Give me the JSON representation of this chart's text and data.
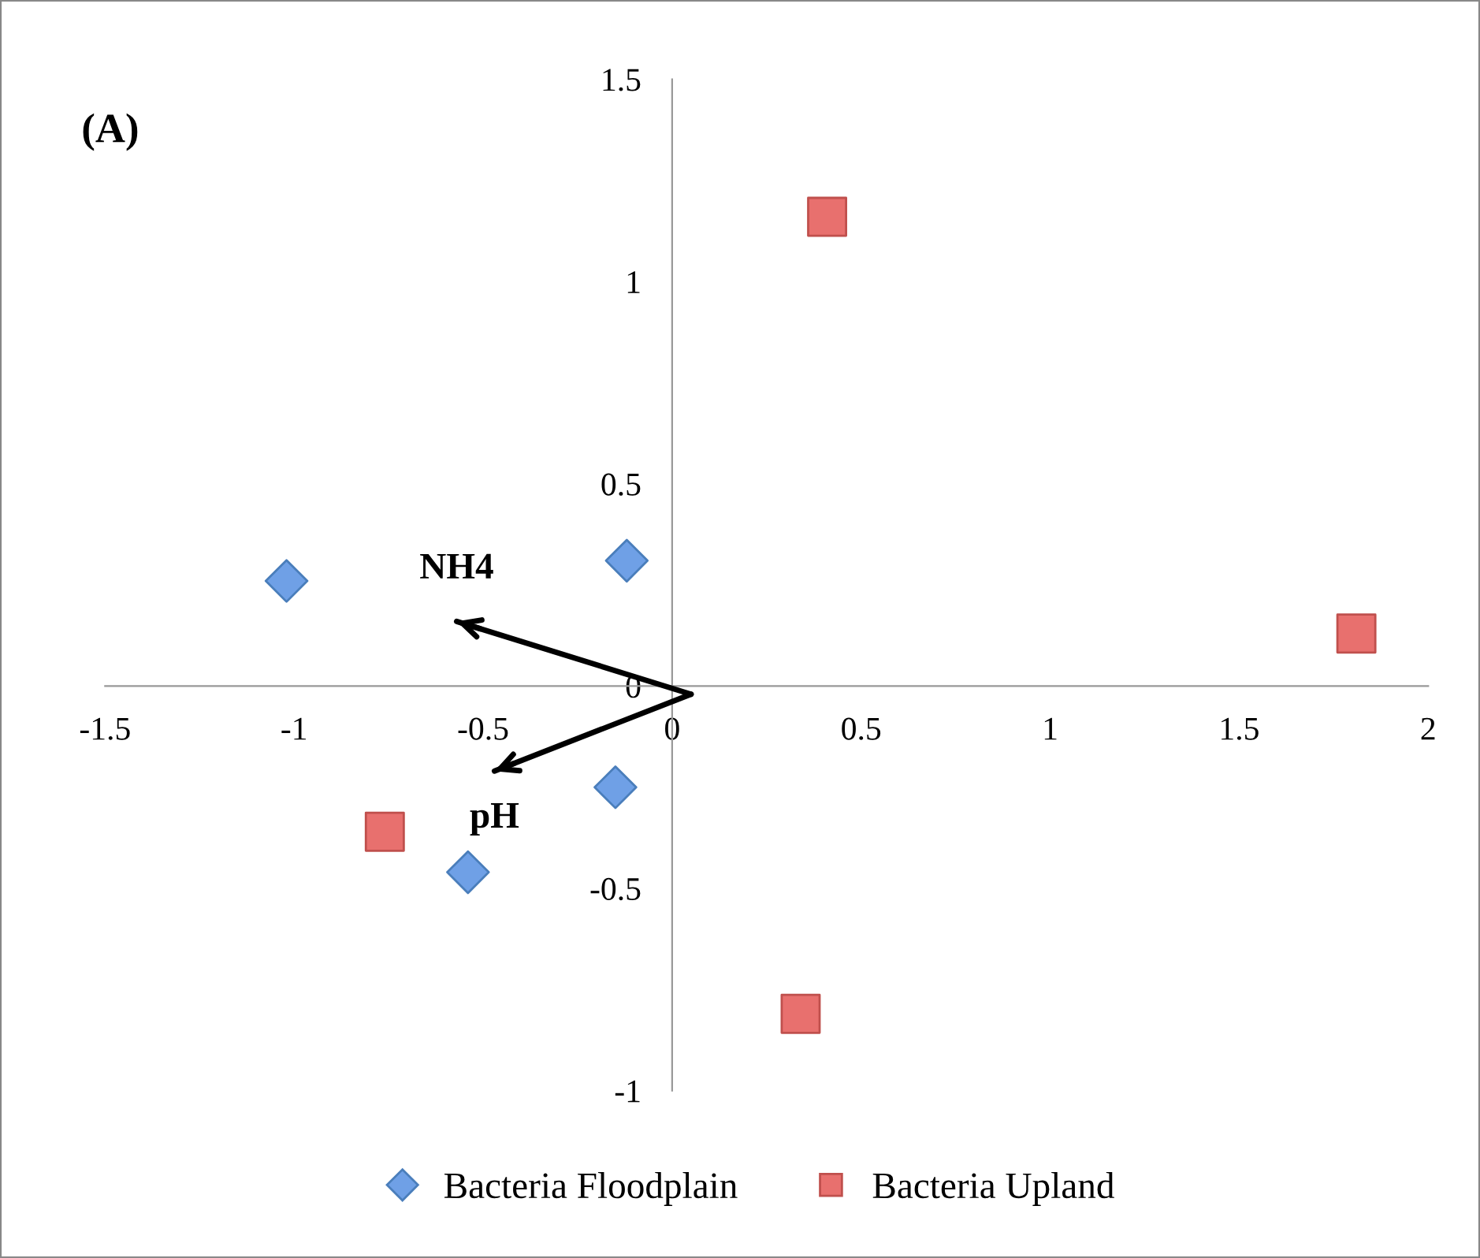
{
  "chart_data": {
    "type": "scatter",
    "xlim": [
      -1.5,
      2
    ],
    "ylim": [
      -1,
      1.5
    ],
    "xticks": [
      -1.5,
      -1,
      -0.5,
      0,
      0.5,
      1,
      1.5,
      2
    ],
    "yticks": [
      -1,
      -0.5,
      0,
      0.5,
      1,
      1.5
    ],
    "grid": false,
    "legend": "bottom",
    "series": [
      {
        "name": "Bacteria Floodplain",
        "color": "#6fa0e6",
        "marker": "diamond",
        "x": [
          -1.02,
          -0.12,
          -0.15,
          -0.54
        ],
        "values": [
          0.26,
          0.31,
          -0.25,
          -0.46
        ]
      },
      {
        "name": "Bacteria Upland",
        "color": "#e8706e",
        "marker": "square",
        "x": [
          0.41,
          1.81,
          -0.76,
          0.34
        ],
        "values": [
          1.16,
          0.13,
          -0.36,
          -0.81
        ]
      },
      {
        "name": "NH4",
        "type": "line",
        "color": "#000000",
        "x": [
          0.05,
          -0.57
        ],
        "values": [
          -0.02,
          0.16
        ]
      },
      {
        "name": "pH",
        "type": "line",
        "color": "#000000",
        "x": [
          0.05,
          -0.47
        ],
        "values": [
          -0.02,
          -0.21
        ]
      }
    ],
    "annotations": [
      "(A)"
    ]
  }
}
